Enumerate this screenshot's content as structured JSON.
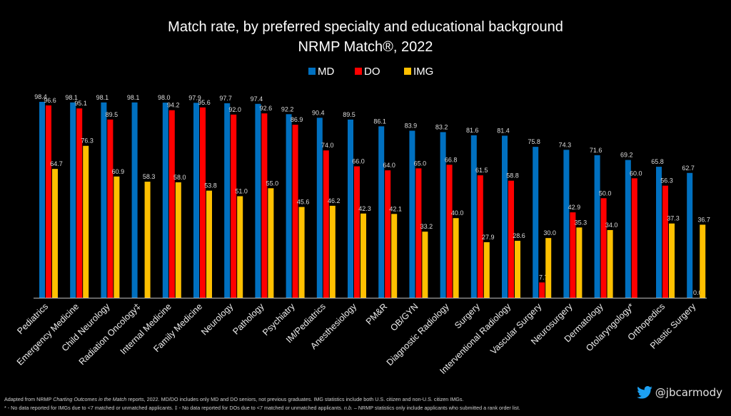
{
  "chart_data": {
    "type": "bar",
    "title": "Match rate, by preferred specialty and educational background",
    "subtitle": "NRMP Match®, 2022",
    "xlabel": "",
    "ylabel": "",
    "ylim": [
      0,
      100
    ],
    "grid": false,
    "legend_position": "top",
    "categories": [
      "Pediatrics",
      "Emergency Medicine",
      "Child Neurology",
      "Radiation Oncology‡",
      "Internal Medicine",
      "Family Medicine",
      "Neurology",
      "Pathology",
      "Psychiatry",
      "IM/Pediatrics",
      "Anesthesiology",
      "PM&R",
      "OB/GYN",
      "Diagnostic Radiology",
      "Surgery",
      "Interventional Radiology",
      "Vascular Surgery",
      "Neurosurgery",
      "Dermatology",
      "Otolaryngology*",
      "Orthopedics",
      "Plastic Surgery"
    ],
    "series": [
      {
        "name": "MD",
        "color": "#0070C0",
        "values": [
          98.4,
          98.1,
          98.1,
          98.1,
          98.0,
          97.9,
          97.7,
          97.4,
          92.2,
          90.4,
          89.5,
          86.1,
          83.9,
          83.2,
          81.6,
          81.4,
          75.8,
          74.3,
          71.6,
          69.2,
          65.8,
          62.7
        ]
      },
      {
        "name": "DO",
        "color": "#FF0000",
        "values": [
          96.6,
          95.1,
          89.5,
          null,
          94.2,
          95.6,
          92.0,
          92.6,
          86.9,
          74.0,
          66.0,
          64.0,
          65.0,
          66.8,
          61.5,
          58.8,
          7.7,
          42.9,
          50.0,
          60.0,
          56.3,
          0.0
        ]
      },
      {
        "name": "IMG",
        "color": "#FFC000",
        "values": [
          64.7,
          76.3,
          60.9,
          58.3,
          58.0,
          53.8,
          51.0,
          55.0,
          45.6,
          46.2,
          42.3,
          42.1,
          33.2,
          40.0,
          27.9,
          28.6,
          30.0,
          35.3,
          34.0,
          null,
          37.3,
          36.7
        ]
      }
    ]
  },
  "footnotes": {
    "line1_prefix": "Adapted from NRMP ",
    "line1_italic": "Charting Outcomes in the Match",
    "line1_suffix": " reports, 2022.  MD/DO includes only MD and DO seniors, not previous graduates.  IMG statistics include both U.S. citizen and non-U.S. citizen IMGs.",
    "line2_a": "* - No data reported for IMGs due to <7 matched or unmatched applicants.    ‡ - No data reported for DOs due to <7 matched or unmatched applicants.    ",
    "line2_italic": "n.b.",
    "line2_b": " – NRMP statistics only include applicants who submitted a rank order list."
  },
  "attribution": {
    "icon": "twitter-bird-icon",
    "handle": "@jbcarmody",
    "color": "#1DA1F2"
  }
}
